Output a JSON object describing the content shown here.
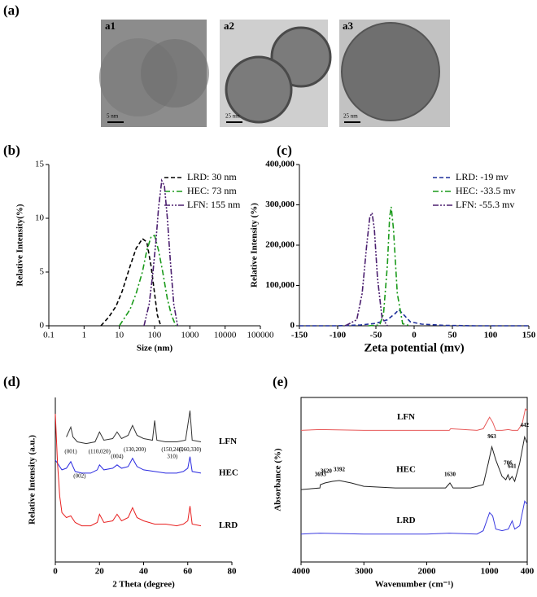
{
  "figure": {
    "panel_a": "(a)"
  },
  "images": [
    {
      "label": "a1",
      "scale": "5 nm"
    },
    {
      "label": "a2",
      "scale": "25 nm"
    },
    {
      "label": "a3",
      "scale": "25 nm"
    }
  ],
  "chart_data": [
    {
      "type": "line",
      "panel": "(b)",
      "xlabel": "Size (nm)",
      "ylabel": "Relative Intensity(%)",
      "xscale": "log",
      "xlim": [
        0.1,
        100000
      ],
      "xticks": [
        0.1,
        1,
        10,
        100,
        1000,
        10000,
        100000
      ],
      "ylim": [
        0,
        15
      ],
      "yticks": [
        0,
        5,
        10,
        15
      ],
      "frame": "axes",
      "legend": "upper right",
      "series": [
        {
          "name": "LRD: 30 nm",
          "color": "#000000",
          "dash": "dashed",
          "x": [
            3,
            5,
            8,
            12,
            20,
            30,
            45,
            60,
            80,
            100,
            120,
            150
          ],
          "values": [
            0,
            0.8,
            1.8,
            3.2,
            5.5,
            7.2,
            8.1,
            7.8,
            5.5,
            3.0,
            1.0,
            0
          ]
        },
        {
          "name": "HEC: 73 nm",
          "color": "#1a9a1a",
          "dash": "dashdot",
          "x": [
            10,
            20,
            30,
            45,
            60,
            80,
            100,
            130,
            170,
            230,
            300,
            400
          ],
          "values": [
            0,
            1.5,
            3,
            5,
            7,
            8.3,
            8.4,
            7,
            5,
            2.5,
            1,
            0
          ]
        },
        {
          "name": "LFN: 155 nm",
          "color": "#4b1f6f",
          "dash": "dashdotdot",
          "x": [
            50,
            70,
            90,
            110,
            130,
            160,
            190,
            230,
            280,
            350,
            450
          ],
          "values": [
            0,
            2,
            5,
            8,
            11,
            13.5,
            13,
            10,
            6,
            2,
            0
          ]
        }
      ]
    },
    {
      "type": "line",
      "panel": "(c)",
      "xlabel": "Zeta potential (mv)",
      "ylabel": "Relative Intensity (%)",
      "xlim": [
        -150,
        150
      ],
      "xticks": [
        -150,
        -100,
        -50,
        0,
        50,
        100,
        150
      ],
      "ylim": [
        0,
        400000
      ],
      "yticks": [
        0,
        {
          "value": 100000,
          "label": "100,000"
        },
        {
          "value": 200000,
          "label": "200,000"
        },
        {
          "value": 300000,
          "label": "300,000"
        },
        {
          "value": 400000,
          "label": "400,000"
        }
      ],
      "frame": "axes",
      "legend": "upper right",
      "series": [
        {
          "name": "LRD: -19 mv",
          "color": "#1f2f9a",
          "dash": "dashed",
          "x": [
            -150,
            -100,
            -70,
            -50,
            -35,
            -25,
            -20,
            -15,
            -5,
            10,
            40,
            80,
            150
          ],
          "values": [
            0,
            0,
            2000,
            6000,
            15000,
            30000,
            40000,
            30000,
            10000,
            4000,
            1000,
            0,
            0
          ]
        },
        {
          "name": "HEC: -33.5 mv",
          "color": "#1a9a1a",
          "dash": "dashdot",
          "x": [
            -60,
            -45,
            -40,
            -35,
            -32,
            -30,
            -27,
            -22,
            -15,
            -5
          ],
          "values": [
            0,
            2000,
            30000,
            150000,
            270000,
            295000,
            240000,
            80000,
            5000,
            0
          ]
        },
        {
          "name": "LFN: -55.3 mv",
          "color": "#4b1f6f",
          "dash": "dashdotdot",
          "x": [
            -90,
            -75,
            -68,
            -62,
            -58,
            -55,
            -52,
            -48,
            -42,
            -35
          ],
          "values": [
            0,
            15000,
            80000,
            200000,
            270000,
            280000,
            240000,
            120000,
            20000,
            0
          ]
        }
      ]
    },
    {
      "type": "line",
      "panel": "(d)",
      "xlabel": "2 Theta (degree)",
      "ylabel": "Relative Intensity (a.u.)",
      "xlim": [
        0,
        80
      ],
      "xticks": [
        0,
        20,
        40,
        60,
        80
      ],
      "ylim": [
        0,
        100
      ],
      "frame": "axes",
      "legend": "inline-end",
      "series": [
        {
          "name": "LFN",
          "color": "#333333",
          "x": [
            5,
            7,
            8,
            10,
            14,
            18,
            20,
            22,
            26,
            28,
            30,
            33,
            35,
            37,
            40,
            44,
            45,
            46,
            50,
            55,
            59,
            61,
            62,
            66
          ],
          "values": [
            76,
            82,
            76,
            73,
            72,
            73,
            79,
            74,
            75,
            79,
            75,
            77,
            83,
            77,
            75,
            74,
            86,
            74,
            73,
            73,
            74,
            92,
            74,
            73
          ]
        },
        {
          "name": "HEC",
          "color": "#2a2ae0",
          "x": [
            0,
            3,
            5,
            7,
            9,
            12,
            16,
            19,
            20,
            22,
            26,
            28,
            30,
            33,
            35,
            37,
            40,
            45,
            50,
            55,
            58,
            60,
            61,
            62,
            66
          ],
          "values": [
            62,
            56,
            57,
            61,
            55,
            54,
            54,
            56,
            59,
            56,
            57,
            59,
            57,
            58,
            63,
            58,
            56,
            55,
            54,
            54,
            55,
            57,
            64,
            55,
            54
          ]
        },
        {
          "name": "LRD",
          "color": "#e82020",
          "x": [
            0,
            1,
            2,
            3,
            5,
            7,
            9,
            12,
            16,
            19,
            20,
            22,
            26,
            28,
            30,
            33,
            35,
            37,
            40,
            45,
            50,
            55,
            58,
            60,
            61,
            62,
            66
          ],
          "values": [
            90,
            60,
            40,
            30,
            27,
            28,
            24,
            22,
            22,
            24,
            29,
            24,
            25,
            29,
            25,
            27,
            33,
            27,
            25,
            23,
            23,
            22,
            23,
            25,
            34,
            23,
            22
          ]
        }
      ],
      "annotations": [
        {
          "text": "(001)",
          "x": 7,
          "y": 67
        },
        {
          "text": "(002)",
          "x": 11,
          "y": 52
        },
        {
          "text": "(110,020)",
          "x": 20,
          "y": 67
        },
        {
          "text": "(004)",
          "x": 28,
          "y": 64
        },
        {
          "text": "(130,200)",
          "x": 36,
          "y": 68
        },
        {
          "text": "(150,240,",
          "x": 53,
          "y": 68
        },
        {
          "text": "310)",
          "x": 53,
          "y": 64
        },
        {
          "text": "(060,330)",
          "x": 61,
          "y": 68
        }
      ]
    },
    {
      "type": "line",
      "panel": "(e)",
      "xlabel": "Wavenumber (cm⁻¹)",
      "ylabel": "Absorbance (%)",
      "xlim": [
        4000,
        400
      ],
      "xticks": [
        4000,
        3000,
        2000,
        1000,
        400
      ],
      "ylim": [
        0,
        100
      ],
      "frame": "box",
      "legend": "inline-center",
      "series": [
        {
          "name": "LFN",
          "color": "#e85a5a",
          "x": [
            4000,
            3700,
            3000,
            2000,
            1640,
            1620,
            1200,
            1100,
            1000,
            950,
            900,
            800,
            700,
            640,
            550,
            480,
            430,
            400
          ],
          "values": [
            80,
            80.5,
            80,
            80,
            80,
            81,
            80,
            81,
            88,
            85,
            80,
            80,
            80.5,
            80,
            80,
            84,
            93,
            92
          ]
        },
        {
          "name": "HEC",
          "color": "#222222",
          "x": [
            4000,
            3700,
            3693,
            3620,
            3500,
            3392,
            3200,
            3000,
            2500,
            2000,
            1700,
            1630,
            1580,
            1300,
            1100,
            1020,
            963,
            900,
            800,
            740,
            706,
            680,
            641,
            600,
            520,
            442,
            400
          ],
          "values": [
            44,
            45,
            47,
            48,
            49,
            49.5,
            48,
            46,
            45,
            45,
            45,
            48,
            45,
            45,
            47,
            60,
            70,
            62,
            52,
            50,
            53,
            50,
            52,
            49,
            60,
            76,
            72
          ]
        },
        {
          "name": "LRD",
          "color": "#3a3ae0",
          "x": [
            4000,
            3700,
            3000,
            2000,
            1640,
            1200,
            1100,
            1000,
            950,
            900,
            800,
            700,
            640,
            600,
            520,
            440,
            400
          ],
          "values": [
            17,
            17.5,
            17,
            17,
            17.5,
            17,
            19,
            30,
            28,
            20,
            19,
            20,
            25,
            20,
            22,
            37,
            35
          ]
        }
      ],
      "annotations": [
        {
          "text": "3693",
          "x": 3693,
          "y": 53
        },
        {
          "text": "3620",
          "x": 3600,
          "y": 55
        },
        {
          "text": "3392",
          "x": 3392,
          "y": 56
        },
        {
          "text": "1630",
          "x": 1630,
          "y": 53
        },
        {
          "text": "963",
          "x": 963,
          "y": 76
        },
        {
          "text": "706",
          "x": 706,
          "y": 60
        },
        {
          "text": "641",
          "x": 641,
          "y": 58
        },
        {
          "text": "442",
          "x": 442,
          "y": 83
        }
      ]
    }
  ]
}
